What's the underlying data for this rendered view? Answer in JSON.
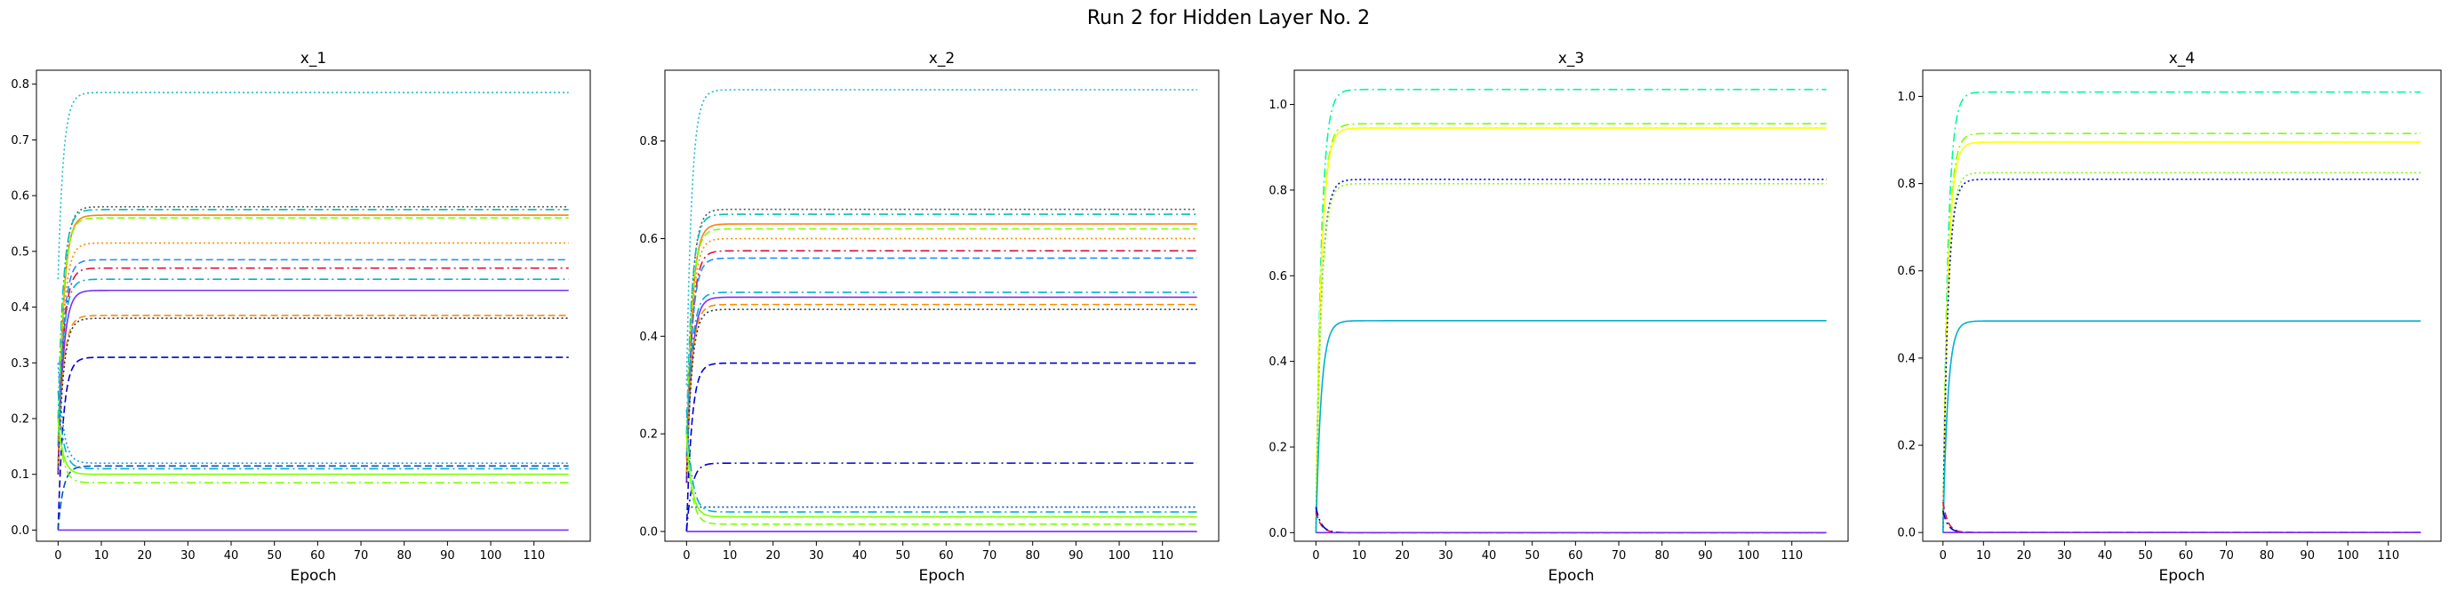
{
  "figure": {
    "title": "Run 2 for Hidden Layer No. 2"
  },
  "chart_data": [
    {
      "type": "line",
      "title": "x_1",
      "xlabel": "Epoch",
      "ylabel": "",
      "xlim": [
        -5,
        123
      ],
      "ylim": [
        -0.02,
        0.825
      ],
      "xticks": [
        "0",
        "10",
        "20",
        "30",
        "40",
        "50",
        "60",
        "70",
        "80",
        "90",
        "100",
        "110"
      ],
      "yticks": [
        "0.0",
        "0.1",
        "0.2",
        "0.3",
        "0.4",
        "0.5",
        "0.6",
        "0.7",
        "0.8"
      ],
      "grid": false,
      "series": [
        {
          "color": "#17becf",
          "dash": "dot",
          "start": 0.45,
          "final": 0.785
        },
        {
          "color": "#555555",
          "dash": "dot",
          "start": 0.15,
          "final": 0.58
        },
        {
          "color": "#00bfbf",
          "dash": "dashdot",
          "start": 0.2,
          "final": 0.575
        },
        {
          "color": "#ff7f0e",
          "dash": "solid",
          "start": 0.1,
          "final": 0.565
        },
        {
          "color": "#7fff00",
          "dash": "dashed",
          "start": 0.15,
          "final": 0.56
        },
        {
          "color": "#ff8c00",
          "dash": "dot",
          "start": 0.1,
          "final": 0.515
        },
        {
          "color": "#1e90ff",
          "dash": "dashed",
          "start": 0.12,
          "final": 0.485
        },
        {
          "color": "#dc143c",
          "dash": "dashdot",
          "start": 0.1,
          "final": 0.47
        },
        {
          "color": "#00b0d0",
          "dash": "dashdot",
          "start": 0.15,
          "final": 0.45
        },
        {
          "color": "#7b2ff7",
          "dash": "solid",
          "start": 0.1,
          "final": 0.43
        },
        {
          "color": "#ff8c00",
          "dash": "dashed",
          "start": 0.12,
          "final": 0.385
        },
        {
          "color": "#333333",
          "dash": "dot",
          "start": 0.1,
          "final": 0.38
        },
        {
          "color": "#0000cd",
          "dash": "dashed",
          "start": 0.0,
          "final": 0.31
        },
        {
          "color": "#1e90ff",
          "dash": "dot",
          "start": 0.3,
          "final": 0.12
        },
        {
          "color": "#0050c0",
          "dash": "dashed",
          "start": 0.0,
          "final": 0.115
        },
        {
          "color": "#00b0d0",
          "dash": "dashdot",
          "start": 0.25,
          "final": 0.11
        },
        {
          "color": "#7fff00",
          "dash": "solid",
          "start": 0.2,
          "final": 0.1
        },
        {
          "color": "#7fff00",
          "dash": "dashdot",
          "start": 0.2,
          "final": 0.085
        },
        {
          "color": "#7b2ff7",
          "dash": "solid",
          "start": 0.0,
          "final": 0.0
        }
      ]
    },
    {
      "type": "line",
      "title": "x_2",
      "xlabel": "Epoch",
      "ylabel": "",
      "xlim": [
        -5,
        123
      ],
      "ylim": [
        -0.02,
        0.945
      ],
      "xticks": [
        "0",
        "10",
        "20",
        "30",
        "40",
        "50",
        "60",
        "70",
        "80",
        "90",
        "100",
        "110"
      ],
      "yticks": [
        "0.0",
        "0.2",
        "0.4",
        "0.6",
        "0.8"
      ],
      "grid": false,
      "series": [
        {
          "color": "#17becf",
          "dash": "dot",
          "start": 0.3,
          "final": 0.905
        },
        {
          "color": "#555555",
          "dash": "dot",
          "start": 0.15,
          "final": 0.66
        },
        {
          "color": "#00bfbf",
          "dash": "dashdot",
          "start": 0.2,
          "final": 0.65
        },
        {
          "color": "#ff7f0e",
          "dash": "solid",
          "start": 0.1,
          "final": 0.63
        },
        {
          "color": "#7fff00",
          "dash": "dashed",
          "start": 0.15,
          "final": 0.62
        },
        {
          "color": "#ff8c00",
          "dash": "dot",
          "start": 0.1,
          "final": 0.6
        },
        {
          "color": "#dc143c",
          "dash": "dashdot",
          "start": 0.1,
          "final": 0.575
        },
        {
          "color": "#1e90ff",
          "dash": "dashed",
          "start": 0.12,
          "final": 0.56
        },
        {
          "color": "#00b0d0",
          "dash": "dashdot",
          "start": 0.15,
          "final": 0.49
        },
        {
          "color": "#7b2ff7",
          "dash": "solid",
          "start": 0.1,
          "final": 0.48
        },
        {
          "color": "#ff8c00",
          "dash": "dashed",
          "start": 0.12,
          "final": 0.465
        },
        {
          "color": "#333333",
          "dash": "dot",
          "start": 0.1,
          "final": 0.455
        },
        {
          "color": "#0000cd",
          "dash": "dashed",
          "start": 0.0,
          "final": 0.345
        },
        {
          "color": "#0000cd",
          "dash": "dashdot",
          "start": 0.0,
          "final": 0.14
        },
        {
          "color": "#0050c0",
          "dash": "dot",
          "start": 0.05,
          "final": 0.05
        },
        {
          "color": "#00b0d0",
          "dash": "dashdot",
          "start": 0.25,
          "final": 0.04
        },
        {
          "color": "#7fff00",
          "dash": "solid",
          "start": 0.2,
          "final": 0.03
        },
        {
          "color": "#7fff00",
          "dash": "dashed",
          "start": 0.2,
          "final": 0.015
        },
        {
          "color": "#7b2ff7",
          "dash": "solid",
          "start": 0.0,
          "final": 0.0
        }
      ]
    },
    {
      "type": "line",
      "title": "x_3",
      "xlabel": "Epoch",
      "ylabel": "",
      "xlim": [
        -5,
        123
      ],
      "ylim": [
        -0.02,
        1.08
      ],
      "xticks": [
        "0",
        "10",
        "20",
        "30",
        "40",
        "50",
        "60",
        "70",
        "80",
        "90",
        "100",
        "110"
      ],
      "yticks": [
        "0.0",
        "0.2",
        "0.4",
        "0.6",
        "0.8",
        "1.0"
      ],
      "grid": false,
      "series": [
        {
          "color": "#00fa9a",
          "dash": "dashdot",
          "start": 0.0,
          "final": 1.035
        },
        {
          "color": "#7fff00",
          "dash": "dashdot",
          "start": 0.0,
          "final": 0.955
        },
        {
          "color": "#ffff00",
          "dash": "solid",
          "start": 0.0,
          "final": 0.945
        },
        {
          "color": "#0000cd",
          "dash": "dot",
          "start": 0.0,
          "final": 0.825
        },
        {
          "color": "#7fff00",
          "dash": "dot",
          "start": 0.0,
          "final": 0.815
        },
        {
          "color": "#00b0d0",
          "dash": "solid",
          "start": 0.0,
          "final": 0.495
        },
        {
          "color": "#dc143c",
          "dash": "dashed",
          "start": 0.05,
          "final": 0.0
        },
        {
          "color": "#0000cd",
          "dash": "dashdot",
          "start": 0.06,
          "final": 0.0
        },
        {
          "color": "#7b2ff7",
          "dash": "solid",
          "start": 0.0,
          "final": 0.0
        }
      ]
    },
    {
      "type": "line",
      "title": "x_4",
      "xlabel": "Epoch",
      "ylabel": "",
      "xlim": [
        -5,
        123
      ],
      "ylim": [
        -0.02,
        1.06
      ],
      "xticks": [
        "0",
        "10",
        "20",
        "30",
        "40",
        "50",
        "60",
        "70",
        "80",
        "90",
        "100",
        "110"
      ],
      "yticks": [
        "0.0",
        "0.2",
        "0.4",
        "0.6",
        "0.8",
        "1.0"
      ],
      "grid": false,
      "series": [
        {
          "color": "#00fa9a",
          "dash": "dashdot",
          "start": 0.0,
          "final": 1.01
        },
        {
          "color": "#7fff00",
          "dash": "dashdot",
          "start": 0.0,
          "final": 0.915
        },
        {
          "color": "#ffff00",
          "dash": "solid",
          "start": 0.0,
          "final": 0.895
        },
        {
          "color": "#7fff00",
          "dash": "dot",
          "start": 0.0,
          "final": 0.825
        },
        {
          "color": "#0000cd",
          "dash": "dot",
          "start": 0.0,
          "final": 0.81
        },
        {
          "color": "#00b0d0",
          "dash": "solid",
          "start": 0.0,
          "final": 0.485
        },
        {
          "color": "#dc143c",
          "dash": "dashed",
          "start": 0.07,
          "final": 0.0
        },
        {
          "color": "#0000cd",
          "dash": "dashdot",
          "start": 0.05,
          "final": 0.0
        },
        {
          "color": "#7b2ff7",
          "dash": "solid",
          "start": 0.0,
          "final": 0.0
        }
      ]
    }
  ]
}
